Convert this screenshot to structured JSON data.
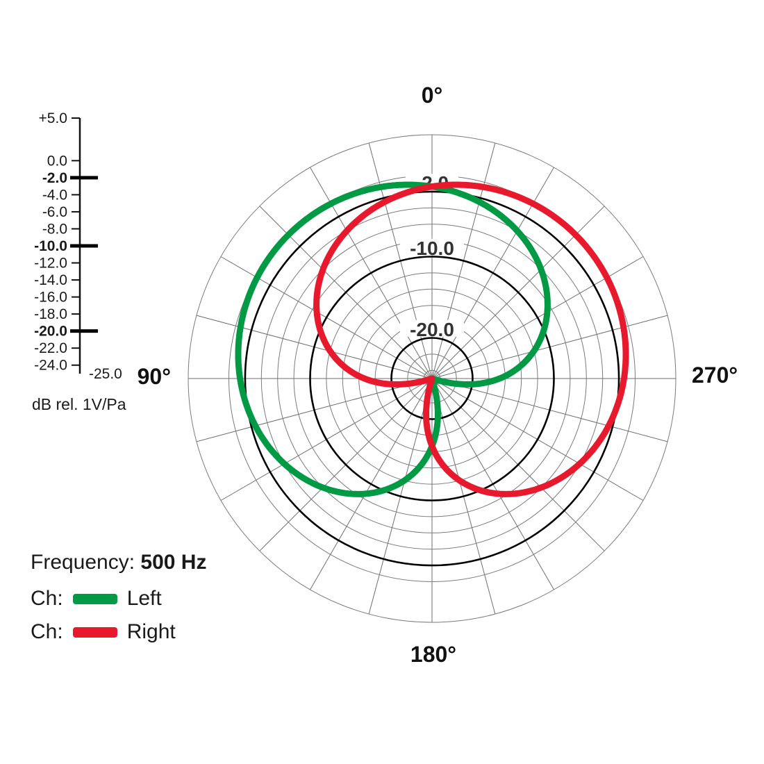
{
  "chart_data": {
    "type": "line",
    "coordinate_system": "polar",
    "description": "Microphone cardioid polar pattern response, left and right channels, at 500 Hz",
    "frequency_label": "Frequency:",
    "frequency_value": "500 Hz",
    "channels": [
      {
        "ch_label": "Ch:",
        "name": "Left",
        "color": "#009A44",
        "pattern": "cardioid",
        "aim_deg": 45,
        "response_db": [
          -1.4,
          -0.6,
          -0.1,
          0.0,
          -0.1,
          -0.6,
          -1.4,
          -2.5,
          -4.0,
          -6.0,
          -8.6,
          -12.0,
          -16.7,
          -23.5,
          -35.4,
          null,
          -35.4,
          -23.5,
          -16.7,
          -12.0,
          -8.6,
          -6.0,
          -4.0,
          -2.5
        ]
      },
      {
        "ch_label": "Ch:",
        "name": "Right",
        "color": "#E8192C",
        "pattern": "cardioid",
        "aim_deg": 315,
        "response_db": [
          -1.4,
          -2.5,
          -4.0,
          -6.0,
          -8.6,
          -12.0,
          -16.7,
          -23.5,
          -35.4,
          null,
          -35.4,
          -23.5,
          -16.7,
          -12.0,
          -8.6,
          -6.0,
          -4.0,
          -2.5,
          -1.4,
          -0.6,
          -0.1,
          0.0,
          -0.1,
          -0.6
        ]
      }
    ],
    "angles_deg": [
      0,
      15,
      30,
      45,
      60,
      75,
      90,
      105,
      120,
      135,
      150,
      165,
      180,
      195,
      210,
      225,
      240,
      255,
      270,
      285,
      300,
      315,
      330,
      345
    ],
    "db_axis": {
      "unit_label": "dB rel. 1V/Pa",
      "max_db": 5,
      "min_db": -25,
      "min_label": "-25.0",
      "ticks": [
        {
          "label": "+5.0",
          "value": 5,
          "bold": false
        },
        {
          "label": "0.0",
          "value": 0,
          "bold": false
        },
        {
          "label": "-2.0",
          "value": -2,
          "bold": true
        },
        {
          "label": "-4.0",
          "value": -4,
          "bold": false
        },
        {
          "label": "-6.0",
          "value": -6,
          "bold": false
        },
        {
          "label": "-8.0",
          "value": -8,
          "bold": false
        },
        {
          "label": "-10.0",
          "value": -10,
          "bold": true
        },
        {
          "label": "-12.0",
          "value": -12,
          "bold": false
        },
        {
          "label": "-14.0",
          "value": -14,
          "bold": false
        },
        {
          "label": "-16.0",
          "value": -16,
          "bold": false
        },
        {
          "label": "-18.0",
          "value": -18,
          "bold": false
        },
        {
          "label": "-20.0",
          "value": -20,
          "bold": true
        },
        {
          "label": "-22.0",
          "value": -22,
          "bold": false
        },
        {
          "label": "-24.0",
          "value": -24,
          "bold": false
        }
      ]
    },
    "ring_labels": [
      {
        "label": "-2.0",
        "value": -2
      },
      {
        "label": "-10.0",
        "value": -10
      },
      {
        "label": "-20.0",
        "value": -20
      }
    ],
    "angle_labels": [
      {
        "label": "0°",
        "angle_deg": 0
      },
      {
        "label": "90°",
        "angle_deg": 90
      },
      {
        "label": "270°",
        "angle_deg": 270
      },
      {
        "label": "180°",
        "angle_deg": 180
      }
    ],
    "grid": {
      "rings_db": [
        5,
        0,
        -2,
        -4,
        -6,
        -8,
        -10,
        -12,
        -14,
        -16,
        -18,
        -20,
        -22,
        -24
      ],
      "bold_rings_db": [
        -2,
        -10,
        -20
      ],
      "spoke_step_deg": 15,
      "zero_at": "top",
      "angle_direction": "counterclockwise"
    }
  }
}
